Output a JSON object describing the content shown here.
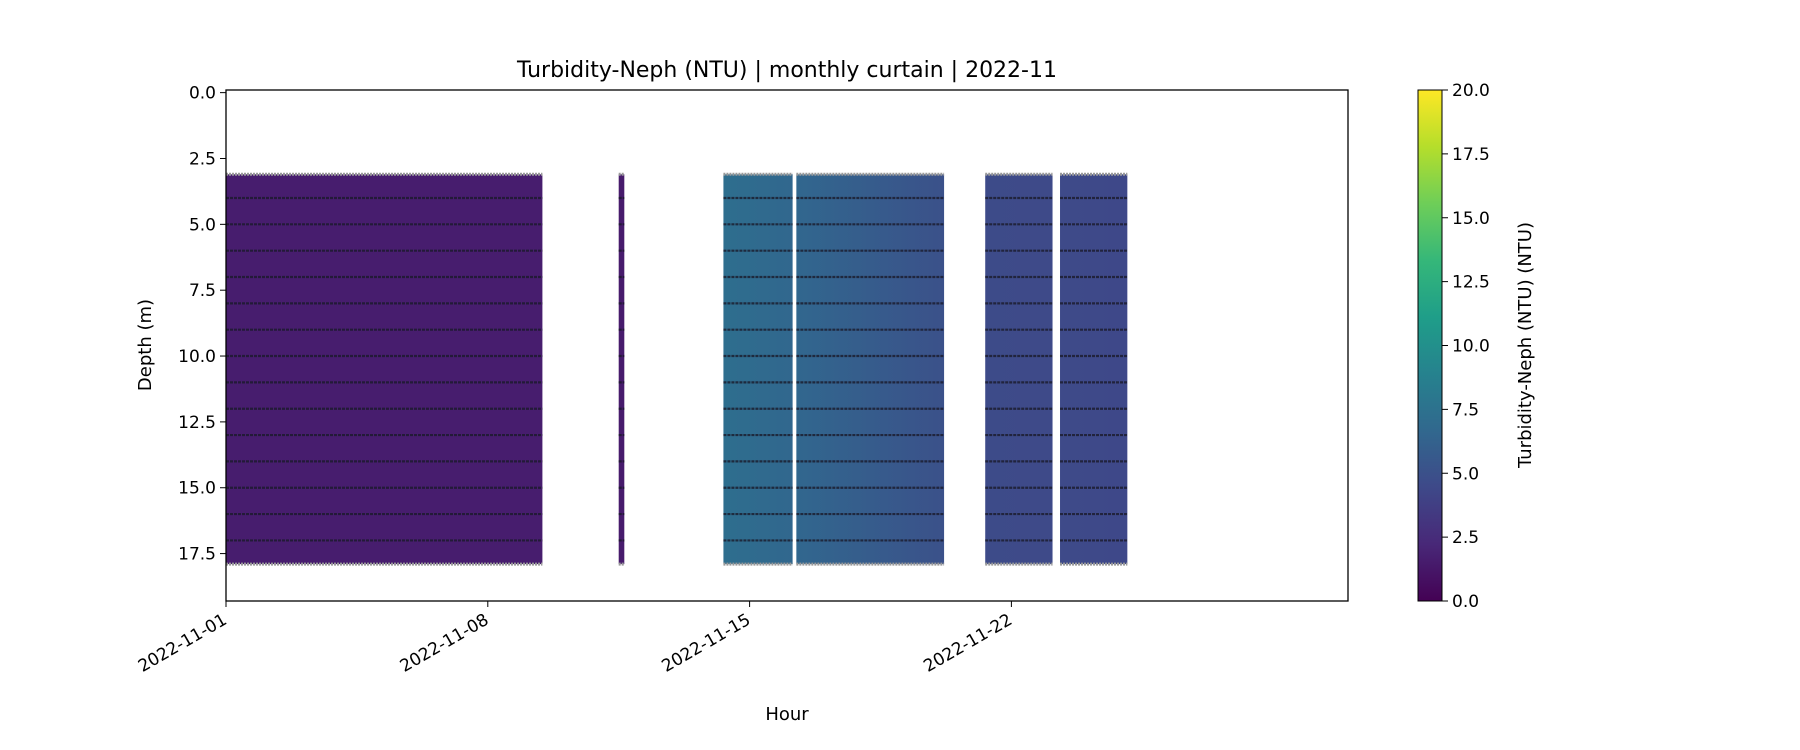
{
  "chart_data": {
    "type": "heatmap",
    "title": "Turbidity-Neph (NTU) | monthly curtain | 2022-11",
    "xlabel": "Hour",
    "ylabel": "Depth (m)",
    "colorbar_label": "Turbidity-Neph (NTU) (NTU)",
    "colormap": "viridis",
    "clim": [
      0,
      20
    ],
    "colorbar_ticks": [
      "0.0",
      "2.5",
      "5.0",
      "7.5",
      "10.0",
      "12.5",
      "15.0",
      "17.5",
      "20.0"
    ],
    "colorbar_tick_values": [
      0,
      2.5,
      5,
      7.5,
      10,
      12.5,
      15,
      17.5,
      20
    ],
    "xlim_days_since_2022-11-01": [
      0,
      30
    ],
    "ylim": [
      19.3,
      -0.1
    ],
    "x_ticks": [
      {
        "label": "2022-11-01",
        "day": 0
      },
      {
        "label": "2022-11-08",
        "day": 7
      },
      {
        "label": "2022-11-15",
        "day": 14
      },
      {
        "label": "2022-11-22",
        "day": 21
      }
    ],
    "y_ticks": [
      {
        "label": "0.0",
        "v": 0
      },
      {
        "label": "2.5",
        "v": 2.5
      },
      {
        "label": "5.0",
        "v": 5
      },
      {
        "label": "7.5",
        "v": 7.5
      },
      {
        "label": "10.0",
        "v": 10
      },
      {
        "label": "12.5",
        "v": 12.5
      },
      {
        "label": "15.0",
        "v": 15
      },
      {
        "label": "17.5",
        "v": 17.5
      }
    ],
    "sample_depths": [
      4,
      5,
      6,
      7,
      8,
      9,
      10,
      11,
      12,
      13,
      14,
      15,
      16,
      17
    ],
    "depth_range": [
      3.1,
      17.9
    ],
    "segments": [
      {
        "start_day": 0.0,
        "end_day": 8.46,
        "value_start": 1.6,
        "value_end": 1.6
      },
      {
        "start_day": 10.5,
        "end_day": 10.65,
        "value_start": 1.5,
        "value_end": 1.5
      },
      {
        "start_day": 13.3,
        "end_day": 15.15,
        "value_start": 7.2,
        "value_end": 6.6
      },
      {
        "start_day": 15.25,
        "end_day": 19.2,
        "value_start": 6.6,
        "value_end": 5.0
      },
      {
        "start_day": 20.3,
        "end_day": 22.1,
        "value_start": 4.6,
        "value_end": 4.5
      },
      {
        "start_day": 22.3,
        "end_day": 24.1,
        "value_start": 4.5,
        "value_end": 4.4
      }
    ]
  }
}
